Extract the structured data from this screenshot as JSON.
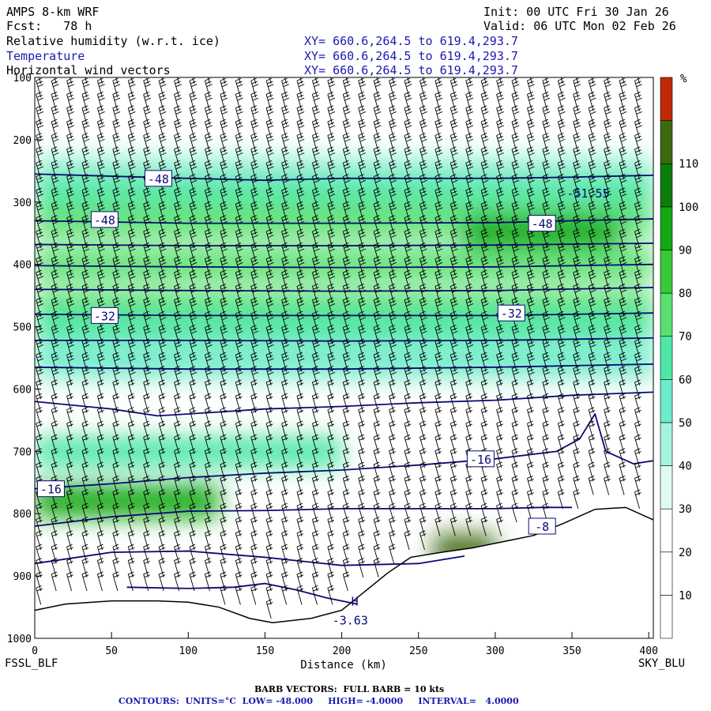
{
  "header": {
    "model": "AMPS 8-km WRF",
    "fcst": "Fcst:   78 h",
    "init": "Init: 00 UTC Fri 30 Jan 26",
    "valid": "Valid: 06 UTC Mon 02 Feb 26",
    "fields": [
      {
        "name": "Relative humidity (w.r.t. ice)",
        "xy": "XY= 660.6,264.5 to 619.4,293.7"
      },
      {
        "name": "Temperature",
        "xy": "XY= 660.6,264.5 to 619.4,293.7"
      },
      {
        "name": "Horizontal wind vectors",
        "xy": "XY= 660.6,264.5 to 619.4,293.7"
      }
    ]
  },
  "stations": {
    "left": "FSSL_BLF",
    "right": "SKY_BLU"
  },
  "footer": {
    "barb": "BARB VECTORS:  FULL BARB = 10 kts",
    "contours": "CONTOURS:  UNITS=°C  LOW= -48.000     HIGH= -4.0000     INTERVAL=   4.0000"
  },
  "colors": {
    "temp_contour": "#0a0a78",
    "rh_scale": [
      "#ffffff",
      "#ffffff",
      "#ffffff",
      "#e0fbf2",
      "#a5f3df",
      "#6ceccb",
      "#4fe7a5",
      "#58e070",
      "#37c937",
      "#13a713",
      "#0b7d0b",
      "#3d6a10",
      "#c02a0a"
    ]
  },
  "chart_data": {
    "type": "heatmap",
    "xlabel": "Distance (km)",
    "ylabel": "",
    "xlim": [
      0,
      403
    ],
    "ylim": [
      1000,
      100
    ],
    "x_ticks": [
      0,
      50,
      100,
      150,
      200,
      250,
      300,
      350,
      400
    ],
    "y_ticks": [
      100,
      200,
      300,
      400,
      500,
      600,
      700,
      800,
      900,
      1000
    ],
    "colorbar": {
      "unit": "%",
      "levels": [
        10,
        20,
        30,
        40,
        50,
        60,
        70,
        80,
        90,
        100,
        110
      ]
    },
    "terrain_surface_hpa": [
      [
        0,
        955
      ],
      [
        20,
        945
      ],
      [
        50,
        940
      ],
      [
        80,
        940
      ],
      [
        100,
        942
      ],
      [
        120,
        950
      ],
      [
        140,
        968
      ],
      [
        155,
        975
      ],
      [
        180,
        968
      ],
      [
        200,
        955
      ],
      [
        215,
        925
      ],
      [
        230,
        895
      ],
      [
        245,
        870
      ],
      [
        265,
        862
      ],
      [
        285,
        855
      ],
      [
        305,
        845
      ],
      [
        325,
        835
      ],
      [
        345,
        815
      ],
      [
        365,
        793
      ],
      [
        385,
        790
      ],
      [
        403,
        810
      ]
    ],
    "temperature_contours": [
      {
        "level": -48,
        "points": [
          [
            0,
            255
          ],
          [
            100,
            262
          ],
          [
            150,
            265
          ],
          [
            200,
            262
          ],
          [
            250,
            262
          ],
          [
            300,
            262
          ],
          [
            350,
            260
          ],
          [
            403,
            257
          ]
        ]
      },
      {
        "level": -48,
        "points": [
          [
            0,
            330
          ],
          [
            100,
            334
          ],
          [
            200,
            334
          ],
          [
            300,
            333
          ],
          [
            350,
            330
          ],
          [
            403,
            327
          ]
        ]
      },
      {
        "level": -44,
        "points": [
          [
            0,
            368
          ],
          [
            100,
            370
          ],
          [
            200,
            370
          ],
          [
            300,
            369
          ],
          [
            403,
            366
          ]
        ]
      },
      {
        "level": -40,
        "points": [
          [
            0,
            402
          ],
          [
            100,
            404
          ],
          [
            200,
            405
          ],
          [
            300,
            404
          ],
          [
            403,
            400
          ]
        ]
      },
      {
        "level": -36,
        "points": [
          [
            0,
            440
          ],
          [
            100,
            442
          ],
          [
            200,
            443
          ],
          [
            300,
            442
          ],
          [
            403,
            437
          ]
        ]
      },
      {
        "level": -32,
        "points": [
          [
            0,
            480
          ],
          [
            100,
            482
          ],
          [
            200,
            482
          ],
          [
            300,
            482
          ],
          [
            403,
            478
          ]
        ]
      },
      {
        "level": -28,
        "points": [
          [
            0,
            522
          ],
          [
            100,
            522
          ],
          [
            200,
            523
          ],
          [
            300,
            522
          ],
          [
            403,
            518
          ]
        ]
      },
      {
        "level": -24,
        "points": [
          [
            0,
            565
          ],
          [
            100,
            568
          ],
          [
            200,
            568
          ],
          [
            300,
            565
          ],
          [
            403,
            560
          ]
        ]
      },
      {
        "level": -20,
        "points": [
          [
            0,
            620
          ],
          [
            50,
            632
          ],
          [
            80,
            643
          ],
          [
            100,
            640
          ],
          [
            150,
            632
          ],
          [
            200,
            628
          ],
          [
            250,
            622
          ],
          [
            300,
            618
          ],
          [
            350,
            610
          ],
          [
            403,
            605
          ]
        ]
      },
      {
        "level": -16,
        "points": [
          [
            0,
            760
          ],
          [
            50,
            752
          ],
          [
            100,
            742
          ],
          [
            150,
            735
          ],
          [
            200,
            730
          ],
          [
            250,
            722
          ],
          [
            300,
            712
          ],
          [
            340,
            700
          ],
          [
            355,
            680
          ],
          [
            365,
            640
          ],
          [
            372,
            700
          ],
          [
            390,
            720
          ],
          [
            403,
            715
          ]
        ]
      },
      {
        "level": -12,
        "points": [
          [
            0,
            820
          ],
          [
            50,
            805
          ],
          [
            100,
            796
          ],
          [
            150,
            795
          ],
          [
            200,
            792
          ],
          [
            250,
            792
          ],
          [
            300,
            792
          ],
          [
            330,
            790
          ],
          [
            350,
            790
          ]
        ]
      },
      {
        "level": -8,
        "points": [
          [
            0,
            880
          ],
          [
            50,
            862
          ],
          [
            100,
            860
          ],
          [
            150,
            870
          ],
          [
            200,
            883
          ],
          [
            250,
            880
          ],
          [
            280,
            868
          ]
        ]
      },
      {
        "level": -4,
        "points": [
          [
            60,
            918
          ],
          [
            100,
            920
          ],
          [
            130,
            918
          ],
          [
            150,
            912
          ],
          [
            170,
            922
          ],
          [
            190,
            935
          ],
          [
            210,
            945
          ]
        ]
      }
    ],
    "contour_labels": [
      {
        "text": "-48",
        "x": 80,
        "p": 262
      },
      {
        "text": "-48",
        "x": 45,
        "p": 328
      },
      {
        "text": "-48",
        "x": 330,
        "p": 334
      },
      {
        "text": "-32",
        "x": 45,
        "p": 482
      },
      {
        "text": "-32",
        "x": 310,
        "p": 478
      },
      {
        "text": "-16",
        "x": 10,
        "p": 760
      },
      {
        "text": "-16",
        "x": 290,
        "p": 712
      },
      {
        "text": "-8",
        "x": 330,
        "p": 820
      },
      {
        "text": "-51.55",
        "x": 360,
        "p": 285
      },
      {
        "text": "H",
        "x": 208,
        "p": 940
      },
      {
        "text": "-3.63",
        "x": 205,
        "p": 970
      }
    ],
    "rh_field": [
      {
        "p": 250,
        "x": [
          0,
          403
        ],
        "v": 40
      },
      {
        "p": 280,
        "x": [
          0,
          403
        ],
        "v": 65
      },
      {
        "p": 330,
        "x": [
          0,
          403
        ],
        "v": 75
      },
      {
        "p": 350,
        "x": [
          280,
          380
        ],
        "v": 95
      },
      {
        "p": 400,
        "x": [
          0,
          403
        ],
        "v": 70
      },
      {
        "p": 470,
        "x": [
          0,
          403
        ],
        "v": 75
      },
      {
        "p": 500,
        "x": [
          0,
          403
        ],
        "v": 65
      },
      {
        "p": 560,
        "x": [
          0,
          403
        ],
        "v": 50
      },
      {
        "p": 620,
        "x": [
          0,
          403
        ],
        "v": 25
      },
      {
        "p": 700,
        "x": [
          0,
          200
        ],
        "v": 65
      },
      {
        "p": 780,
        "x": [
          0,
          120
        ],
        "v": 95
      },
      {
        "p": 860,
        "x": [
          260,
          300
        ],
        "v": 115
      }
    ]
  }
}
